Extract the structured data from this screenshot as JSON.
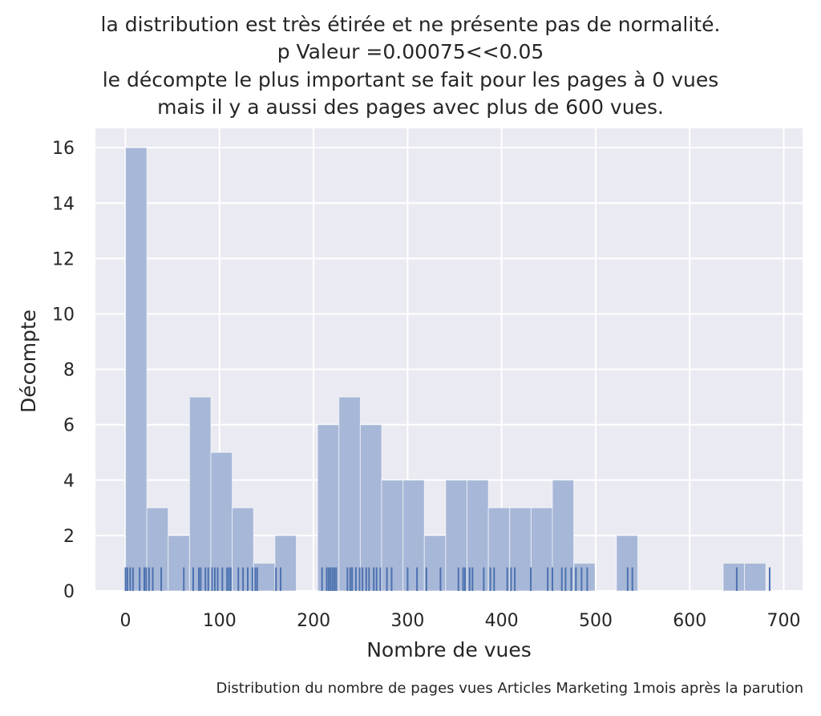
{
  "chart_data": {
    "type": "histogram",
    "title_lines": [
      "la distribution est très étirée et ne présente pas de normalité.",
      "p Valeur =0.00075<<0.05",
      "le décompte le plus important se fait pour les pages à 0 vues",
      "mais il y a aussi des pages avec plus de 600 vues."
    ],
    "xlabel": "Nombre de vues",
    "ylabel": "Décompte",
    "caption": "Distribution du nombre de pages vues Articles Marketing 1mois après la parution",
    "xlim": [
      -32,
      720
    ],
    "ylim": [
      0,
      16.7
    ],
    "xticks": [
      0,
      100,
      200,
      300,
      400,
      500,
      600,
      700
    ],
    "yticks": [
      0,
      2,
      4,
      6,
      8,
      10,
      12,
      14,
      16
    ],
    "grid": true,
    "bin_edges": [
      0,
      22.7,
      45.4,
      68.1,
      90.8,
      113.5,
      136.2,
      158.9,
      181.6,
      204.3,
      227,
      249.7,
      272.4,
      295.1,
      317.8,
      340.5,
      363.2,
      385.9,
      408.6,
      431.3,
      454,
      476.7,
      499.4,
      522.1,
      544.8,
      567.5,
      590.2,
      612.9,
      635.6,
      658.3,
      681
    ],
    "counts": [
      16,
      3,
      2,
      7,
      5,
      3,
      1,
      2,
      0,
      6,
      7,
      6,
      4,
      4,
      2,
      4,
      4,
      3,
      3,
      3,
      4,
      1,
      0,
      2,
      0,
      0,
      0,
      0,
      1,
      1
    ],
    "rug": [
      0,
      2,
      5,
      8,
      15,
      20,
      22,
      25,
      29,
      38,
      62,
      72,
      78,
      80,
      85,
      88,
      92,
      95,
      98,
      103,
      108,
      110,
      112,
      120,
      125,
      130,
      135,
      138,
      140,
      160,
      165,
      209,
      214,
      216,
      218,
      220,
      222,
      224,
      236,
      239,
      241,
      245,
      249,
      252,
      256,
      259,
      264,
      267,
      271,
      278,
      283,
      300,
      310,
      320,
      335,
      354,
      359,
      361,
      366,
      369,
      381,
      388,
      392,
      406,
      410,
      414,
      431,
      449,
      454,
      464,
      468,
      474,
      479,
      485,
      491,
      534,
      539,
      650,
      685
    ],
    "bar_color": "#a7b7d7",
    "rug_color": "#4c72b0",
    "background": "#eaeaf2"
  }
}
